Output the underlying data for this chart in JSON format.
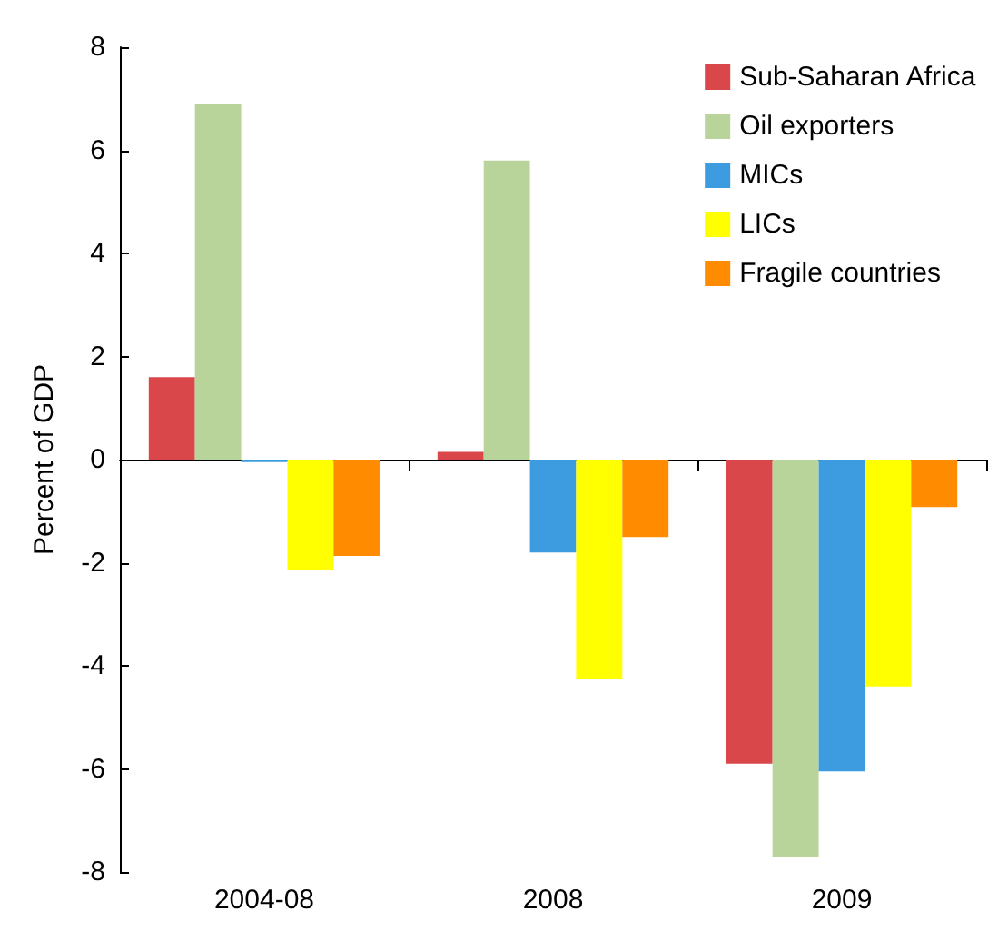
{
  "chart_data": {
    "type": "bar",
    "ylabel": "Percent of GDP",
    "categories": [
      "2004-08",
      "2008",
      "2009"
    ],
    "series": [
      {
        "name": "Sub-Saharan Africa",
        "color": "#d9474a",
        "values": [
          1.6,
          0.15,
          -5.9
        ]
      },
      {
        "name": "Oil exporters",
        "color": "#b8d49a",
        "values": [
          6.9,
          5.8,
          -7.7
        ]
      },
      {
        "name": "MICs",
        "color": "#3d9be0",
        "values": [
          -0.05,
          -1.8,
          -6.05
        ]
      },
      {
        "name": "LICs",
        "color": "#ffff00",
        "values": [
          -2.15,
          -4.25,
          -4.4
        ]
      },
      {
        "name": "Fragile countries",
        "color": "#ff8c00",
        "values": [
          -1.87,
          -1.5,
          -0.92
        ]
      }
    ],
    "ylim": [
      -8,
      8
    ],
    "yticks": [
      -8,
      -6,
      -4,
      -2,
      0,
      2,
      4,
      6,
      8
    ],
    "legend": "top right"
  }
}
